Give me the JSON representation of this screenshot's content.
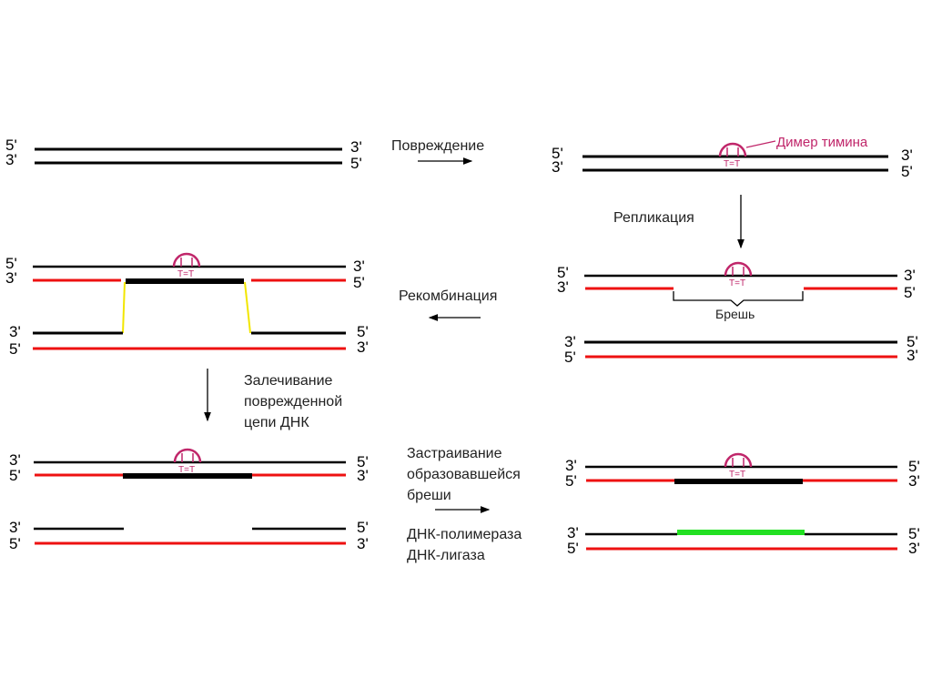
{
  "colors": {
    "strand": "#000000",
    "new_strand": "#ee1111",
    "dimer": "#c0266a",
    "crossover": "#f2e600",
    "repair": "#22e022"
  },
  "ends": {
    "five": "5'",
    "three": "3'"
  },
  "dimer_label": "T=T",
  "annotations": {
    "thymine_dimer": "Димер тимина",
    "gap": "Брешь"
  },
  "steps": {
    "damage": "Повреждение",
    "replication": "Репликация",
    "recombination": "Рекомбинация",
    "healing": [
      "Залечивание",
      "поврежденной",
      "цепи ДНК"
    ],
    "gap_filling": [
      "Застраивание",
      "образовавшейся",
      "бреши"
    ],
    "enzymes": [
      "ДНК-полимераза",
      "ДНК-лигаза"
    ]
  }
}
